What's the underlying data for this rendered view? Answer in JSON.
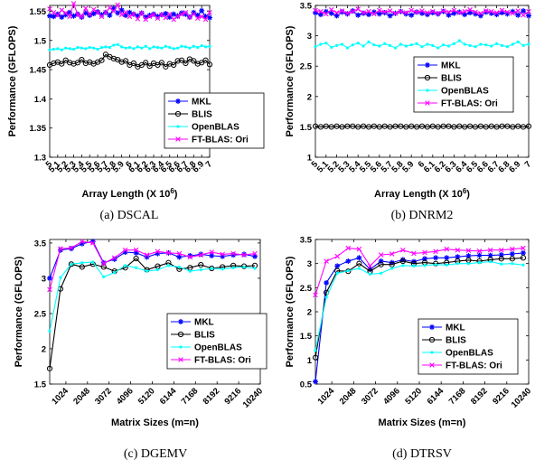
{
  "captions": [
    "(a)  DSCAL",
    "(b)  DNRM2",
    "(c)  DGEMV",
    "(d)  DTRSV"
  ],
  "colors": {
    "MKL": "#0000ff",
    "BLIS": "#000000",
    "OpenBLAS": "#00ffff",
    "FT-BLAS: Ori": "#ff00ff"
  },
  "chart_data": [
    {
      "type": "line",
      "caption": "(a)  DSCAL",
      "xlabel": "Array Length (X 10",
      "xlabel_sup": "6",
      "xlabel_tail": ")",
      "ylabel": "Performance (GFLOPS)",
      "ylim": [
        1.3,
        1.56
      ],
      "yticks": [
        1.3,
        1.35,
        1.4,
        1.45,
        1.5,
        1.55
      ],
      "ytick_labels": [
        "1.3",
        "1.35",
        "1.4",
        "1.45",
        "1.5",
        "1.55"
      ],
      "xlim": [
        5.0,
        7.0
      ],
      "xticks": [
        5.0,
        5.1,
        5.2,
        5.3,
        5.4,
        5.5,
        5.6,
        5.7,
        5.8,
        5.9,
        6.0,
        6.1,
        6.2,
        6.3,
        6.4,
        6.5,
        6.6,
        6.7,
        6.8,
        6.9,
        7.0
      ],
      "xtick_labels": [
        "5",
        "5.1",
        "5.2",
        "5.3",
        "5.4",
        "5.5",
        "5.6",
        "5.7",
        "5.8",
        "5.9",
        "6",
        "6.1",
        "6.2",
        "6.3",
        "6.4",
        "6.5",
        "6.6",
        "6.7",
        "6.8",
        "6.9",
        "7"
      ],
      "x": [
        5.0,
        5.05,
        5.1,
        5.15,
        5.2,
        5.25,
        5.3,
        5.35,
        5.4,
        5.45,
        5.5,
        5.55,
        5.6,
        5.65,
        5.7,
        5.75,
        5.8,
        5.85,
        5.9,
        5.95,
        6.0,
        6.05,
        6.1,
        6.15,
        6.2,
        6.25,
        6.3,
        6.35,
        6.4,
        6.45,
        6.5,
        6.55,
        6.6,
        6.65,
        6.7,
        6.75,
        6.8,
        6.85,
        6.9,
        6.95,
        7.0
      ],
      "legend_position": "bottom-right",
      "series": [
        {
          "name": "MKL",
          "marker": "star",
          "values": [
            1.542,
            1.541,
            1.545,
            1.54,
            1.544,
            1.548,
            1.542,
            1.545,
            1.54,
            1.547,
            1.543,
            1.546,
            1.549,
            1.544,
            1.548,
            1.543,
            1.555,
            1.547,
            1.552,
            1.543,
            1.548,
            1.545,
            1.542,
            1.547,
            1.54,
            1.543,
            1.545,
            1.541,
            1.544,
            1.546,
            1.54,
            1.545,
            1.542,
            1.547,
            1.545,
            1.54,
            1.548,
            1.543,
            1.551,
            1.541,
            1.539
          ]
        },
        {
          "name": "BLIS",
          "marker": "circle",
          "values": [
            1.458,
            1.461,
            1.463,
            1.46,
            1.466,
            1.462,
            1.46,
            1.462,
            1.467,
            1.461,
            1.463,
            1.46,
            1.463,
            1.466,
            1.476,
            1.472,
            1.469,
            1.467,
            1.463,
            1.465,
            1.458,
            1.461,
            1.455,
            1.458,
            1.462,
            1.456,
            1.461,
            1.458,
            1.462,
            1.455,
            1.46,
            1.458,
            1.465,
            1.466,
            1.461,
            1.468,
            1.465,
            1.46,
            1.462,
            1.466,
            1.459
          ]
        },
        {
          "name": "OpenBLAS",
          "marker": "point",
          "values": [
            1.484,
            1.485,
            1.486,
            1.484,
            1.487,
            1.486,
            1.485,
            1.488,
            1.487,
            1.486,
            1.488,
            1.487,
            1.485,
            1.488,
            1.489,
            1.488,
            1.492,
            1.493,
            1.489,
            1.487,
            1.488,
            1.486,
            1.489,
            1.487,
            1.49,
            1.486,
            1.489,
            1.488,
            1.487,
            1.49,
            1.488,
            1.486,
            1.487,
            1.49,
            1.489,
            1.487,
            1.49,
            1.488,
            1.491,
            1.489,
            1.49
          ]
        },
        {
          "name": "FT-BLAS: Ori",
          "marker": "x",
          "values": [
            1.554,
            1.548,
            1.543,
            1.552,
            1.547,
            1.541,
            1.563,
            1.544,
            1.541,
            1.555,
            1.545,
            1.553,
            1.548,
            1.541,
            1.548,
            1.556,
            1.55,
            1.561,
            1.544,
            1.548,
            1.541,
            1.545,
            1.537,
            1.547,
            1.536,
            1.541,
            1.544,
            1.538,
            1.544,
            1.539,
            1.545,
            1.536,
            1.541,
            1.545,
            1.548,
            1.54,
            1.545,
            1.538,
            1.541,
            1.536,
            1.548
          ]
        }
      ]
    },
    {
      "type": "line",
      "caption": "(b)  DNRM2",
      "xlabel": "Array Length (X 10",
      "xlabel_sup": "6",
      "xlabel_tail": ")",
      "ylabel": "Performance (GFLOPS)",
      "ylim": [
        1.0,
        3.5
      ],
      "yticks": [
        1,
        1.5,
        2,
        2.5,
        3,
        3.5
      ],
      "ytick_labels": [
        "1",
        "1.5",
        "2",
        "2.5",
        "3",
        "3.5"
      ],
      "xlim": [
        5.0,
        7.0
      ],
      "xticks": [
        5.0,
        5.1,
        5.2,
        5.3,
        5.4,
        5.5,
        5.6,
        5.7,
        5.8,
        5.9,
        6.0,
        6.1,
        6.2,
        6.3,
        6.4,
        6.5,
        6.6,
        6.7,
        6.8,
        6.9,
        7.0
      ],
      "xtick_labels": [
        "5",
        "5.1",
        "5.2",
        "5.3",
        "5.4",
        "5.5",
        "5.6",
        "5.7",
        "5.8",
        "5.9",
        "6",
        "6.1",
        "6.2",
        "6.3",
        "6.4",
        "6.5",
        "6.6",
        "6.7",
        "6.8",
        "6.9",
        "7"
      ],
      "x": [
        5.0,
        5.05,
        5.1,
        5.15,
        5.2,
        5.25,
        5.3,
        5.35,
        5.4,
        5.45,
        5.5,
        5.55,
        5.6,
        5.65,
        5.7,
        5.75,
        5.8,
        5.85,
        5.9,
        5.95,
        6.0,
        6.05,
        6.1,
        6.15,
        6.2,
        6.25,
        6.3,
        6.35,
        6.4,
        6.45,
        6.5,
        6.55,
        6.6,
        6.65,
        6.7,
        6.75,
        6.8,
        6.85,
        6.9,
        6.95,
        7.0
      ],
      "legend_position": "right",
      "series": [
        {
          "name": "MKL",
          "marker": "star",
          "values": [
            3.38,
            3.35,
            3.4,
            3.37,
            3.33,
            3.39,
            3.36,
            3.41,
            3.34,
            3.37,
            3.35,
            3.39,
            3.36,
            3.38,
            3.33,
            3.37,
            3.4,
            3.36,
            3.34,
            3.39,
            3.37,
            3.35,
            3.38,
            3.36,
            3.4,
            3.34,
            3.37,
            3.39,
            3.35,
            3.38,
            3.36,
            3.33,
            3.39,
            3.37,
            3.35,
            3.38,
            3.36,
            3.4,
            3.34,
            3.41,
            3.33
          ]
        },
        {
          "name": "BLIS",
          "marker": "circle",
          "values": [
            1.51,
            1.5,
            1.51,
            1.5,
            1.51,
            1.5,
            1.51,
            1.51,
            1.5,
            1.51,
            1.5,
            1.51,
            1.5,
            1.51,
            1.5,
            1.51,
            1.51,
            1.5,
            1.51,
            1.5,
            1.51,
            1.5,
            1.51,
            1.5,
            1.51,
            1.51,
            1.5,
            1.51,
            1.5,
            1.51,
            1.5,
            1.51,
            1.5,
            1.51,
            1.5,
            1.51,
            1.51,
            1.5,
            1.51,
            1.5,
            1.51
          ]
        },
        {
          "name": "OpenBLAS",
          "marker": "point",
          "values": [
            2.82,
            2.86,
            2.88,
            2.81,
            2.84,
            2.86,
            2.8,
            2.85,
            2.88,
            2.83,
            2.9,
            2.85,
            2.83,
            2.87,
            2.84,
            2.8,
            2.86,
            2.83,
            2.85,
            2.87,
            2.82,
            2.86,
            2.84,
            2.8,
            2.85,
            2.83,
            2.87,
            2.92,
            2.86,
            2.84,
            2.82,
            2.86,
            2.85,
            2.83,
            2.87,
            2.84,
            2.82,
            2.86,
            2.9,
            2.84,
            2.86
          ]
        },
        {
          "name": "FT-BLAS: Ori",
          "marker": "x",
          "values": [
            3.42,
            3.4,
            3.36,
            3.43,
            3.38,
            3.41,
            3.37,
            3.4,
            3.44,
            3.38,
            3.4,
            3.36,
            3.42,
            3.39,
            3.41,
            3.37,
            3.4,
            3.38,
            3.42,
            3.39,
            3.41,
            3.38,
            3.4,
            3.37,
            3.41,
            3.39,
            3.42,
            3.38,
            3.4,
            3.43,
            3.39,
            3.37,
            3.41,
            3.4,
            3.38,
            3.42,
            3.39,
            3.37,
            3.41,
            3.34,
            3.4
          ]
        }
      ]
    },
    {
      "type": "line",
      "caption": "(c)  DGEMV",
      "xlabel": "Matrix Sizes (m=n)",
      "ylabel": "Performance (GFLOPS)",
      "ylim": [
        1.5,
        3.55
      ],
      "yticks": [
        1.5,
        2,
        2.5,
        3,
        3.5
      ],
      "ytick_labels": [
        "1.5",
        "2",
        "2.5",
        "3",
        "3.5"
      ],
      "xlim": [
        256,
        10240
      ],
      "xticks": [
        1024,
        2048,
        3072,
        4096,
        5120,
        6144,
        7168,
        8192,
        9216,
        10240
      ],
      "xtick_labels": [
        "1024",
        "2048",
        "3072",
        "4096",
        "5120",
        "6144",
        "7168",
        "8192",
        "9216",
        "10240"
      ],
      "x": [
        256,
        768,
        1280,
        1792,
        2304,
        2816,
        3328,
        3840,
        4352,
        4864,
        5376,
        5888,
        6400,
        6912,
        7424,
        7936,
        8448,
        8960,
        9472,
        9984
      ],
      "legend_position": "bottom-right",
      "series": [
        {
          "name": "MKL",
          "marker": "star",
          "values": [
            3.0,
            3.4,
            3.42,
            3.49,
            3.52,
            3.22,
            3.27,
            3.37,
            3.36,
            3.3,
            3.35,
            3.36,
            3.3,
            3.32,
            3.34,
            3.32,
            3.31,
            3.33,
            3.34,
            3.31
          ]
        },
        {
          "name": "BLIS",
          "marker": "circle",
          "values": [
            1.72,
            2.85,
            3.2,
            3.16,
            3.2,
            3.16,
            3.1,
            3.15,
            3.28,
            3.12,
            3.17,
            3.22,
            3.13,
            3.15,
            3.19,
            3.14,
            3.16,
            3.18,
            3.17,
            3.18
          ]
        },
        {
          "name": "OpenBLAS",
          "marker": "point",
          "values": [
            2.25,
            3.01,
            3.2,
            3.22,
            3.23,
            3.02,
            3.08,
            3.18,
            3.15,
            3.1,
            3.12,
            3.18,
            3.16,
            3.1,
            3.12,
            3.14,
            3.13,
            3.15,
            3.16,
            3.14
          ]
        },
        {
          "name": "FT-BLAS: Ori",
          "marker": "x",
          "values": [
            2.84,
            3.42,
            3.43,
            3.52,
            3.5,
            3.21,
            3.29,
            3.4,
            3.4,
            3.33,
            3.38,
            3.36,
            3.35,
            3.3,
            3.33,
            3.37,
            3.34,
            3.35,
            3.33,
            3.35
          ]
        }
      ]
    },
    {
      "type": "line",
      "caption": "(d)  DTRSV",
      "xlabel": "Matrix Sizes (m=n)",
      "ylabel": "Performance (GFLOPS)",
      "ylim": [
        0.5,
        3.5
      ],
      "yticks": [
        0.5,
        1,
        1.5,
        2,
        2.5,
        3,
        3.5
      ],
      "ytick_labels": [
        "0.5",
        "1",
        "1.5",
        "2",
        "2.5",
        "3",
        "3.5"
      ],
      "xlim": [
        256,
        10240
      ],
      "xticks": [
        1024,
        2048,
        3072,
        4096,
        5120,
        6144,
        7168,
        8192,
        9216,
        10240
      ],
      "xtick_labels": [
        "1024",
        "2048",
        "3072",
        "4096",
        "5120",
        "6144",
        "7168",
        "8192",
        "9216",
        "10240"
      ],
      "x": [
        256,
        768,
        1280,
        1792,
        2304,
        2816,
        3328,
        3840,
        4352,
        4864,
        5376,
        5888,
        6400,
        6912,
        7424,
        7936,
        8448,
        8960,
        9472,
        9984
      ],
      "legend_position": "bottom-right",
      "series": [
        {
          "name": "MKL",
          "marker": "star",
          "values": [
            0.55,
            2.6,
            2.95,
            3.05,
            3.12,
            2.88,
            3.05,
            3.02,
            3.08,
            3.04,
            3.1,
            3.12,
            3.12,
            3.14,
            3.16,
            3.17,
            3.17,
            3.18,
            3.2,
            3.22
          ]
        },
        {
          "name": "BLIS",
          "marker": "circle",
          "values": [
            1.05,
            2.4,
            2.85,
            2.84,
            3.0,
            2.84,
            2.98,
            2.98,
            3.05,
            3.0,
            3.02,
            3.0,
            3.02,
            3.05,
            3.07,
            3.05,
            3.08,
            3.1,
            3.1,
            3.12
          ]
        },
        {
          "name": "OpenBLAS",
          "marker": "point",
          "values": [
            1.2,
            2.3,
            2.8,
            2.85,
            2.9,
            2.78,
            2.8,
            2.9,
            2.96,
            2.95,
            2.96,
            2.98,
            2.97,
            3.0,
            3.0,
            3.02,
            3.04,
            2.99,
            3.0,
            2.97
          ]
        },
        {
          "name": "FT-BLAS: Ori",
          "marker": "x",
          "values": [
            2.35,
            3.05,
            3.15,
            3.32,
            3.3,
            2.95,
            3.18,
            3.2,
            3.28,
            3.21,
            3.23,
            3.25,
            3.3,
            3.28,
            3.27,
            3.26,
            3.28,
            3.28,
            3.3,
            3.32
          ]
        }
      ]
    }
  ]
}
